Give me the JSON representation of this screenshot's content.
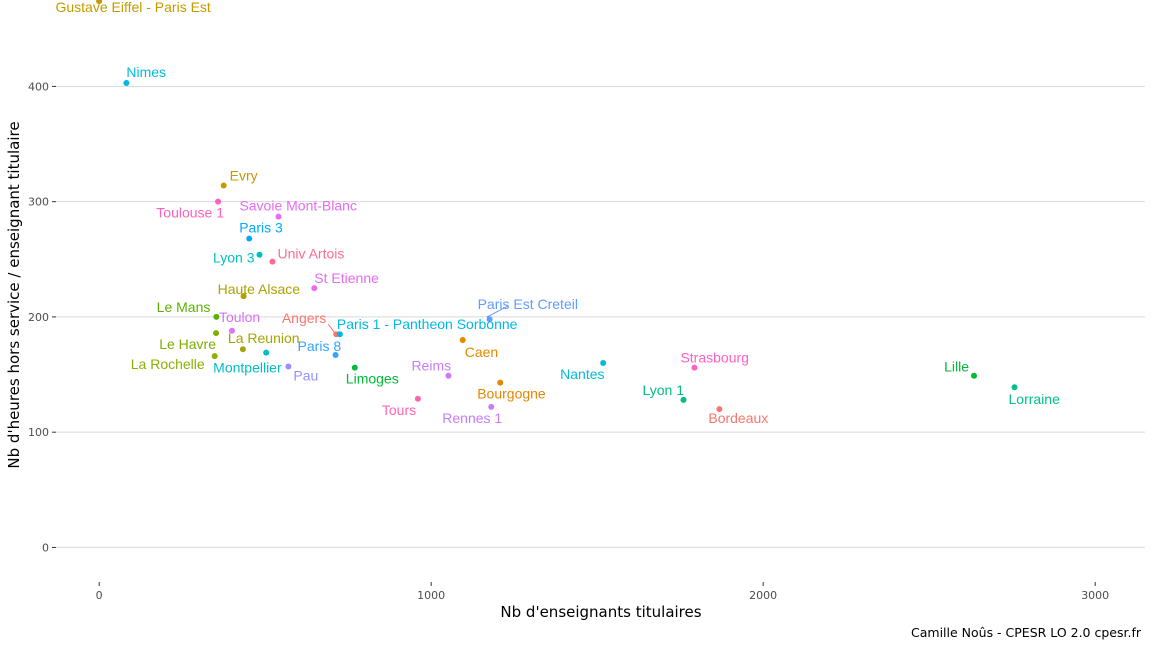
{
  "chart_data": {
    "type": "scatter",
    "xlabel": "Nb d'enseignants titulaires",
    "ylabel": "Nb d'heures hors service / enseignant titulaire",
    "xlim": [
      -130,
      3150
    ],
    "ylim": [
      -30,
      475
    ],
    "x_ticks": [
      0,
      1000,
      2000,
      3000
    ],
    "y_ticks": [
      0,
      100,
      200,
      300,
      400
    ],
    "grid": "horizontal major gridlines",
    "legend": "none",
    "points": [
      {
        "name": "Gustave Eiffel - Paris Est",
        "x": 0,
        "y": 474,
        "color": "#C49A00"
      },
      {
        "name": "Nimes",
        "x": 82,
        "y": 403,
        "color": "#00B9E3"
      },
      {
        "name": "Evry",
        "x": 375,
        "y": 314,
        "color": "#C49A00"
      },
      {
        "name": "Toulouse 1",
        "x": 358,
        "y": 300,
        "color": "#FF62BC"
      },
      {
        "name": "Savoie Mont-Blanc",
        "x": 540,
        "y": 287,
        "color": "#E76BF3"
      },
      {
        "name": "Paris 3",
        "x": 452,
        "y": 268,
        "color": "#00A9FF"
      },
      {
        "name": "Lyon 3",
        "x": 483,
        "y": 254,
        "color": "#00BFC4"
      },
      {
        "name": "Univ Artois",
        "x": 522,
        "y": 248,
        "color": "#FF6C91"
      },
      {
        "name": "St Etienne",
        "x": 648,
        "y": 225,
        "color": "#E76BF3"
      },
      {
        "name": "Haute Alsace",
        "x": 435,
        "y": 218,
        "color": "#AEA200"
      },
      {
        "name": "Paris Est Creteil",
        "x": 1176,
        "y": 198,
        "color": "#619CFF"
      },
      {
        "name": "Le Mans",
        "x": 353,
        "y": 200,
        "color": "#5BB300"
      },
      {
        "name": "Toulon",
        "x": 400,
        "y": 188,
        "color": "#DB72FB"
      },
      {
        "name": "Angers",
        "x": 714,
        "y": 185,
        "color": "#F8766D"
      },
      {
        "name": "Paris 1 - Pantheon Sorbonne",
        "x": 725,
        "y": 185,
        "color": "#00B8E7"
      },
      {
        "name": "Le Havre",
        "x": 352,
        "y": 186,
        "color": "#7CAE00"
      },
      {
        "name": "La Reunion",
        "x": 433,
        "y": 172,
        "color": "#A3A500"
      },
      {
        "name": "Caen",
        "x": 1095,
        "y": 180,
        "color": "#E38900"
      },
      {
        "name": "Paris 8",
        "x": 712,
        "y": 167,
        "color": "#35A2FF"
      },
      {
        "name": "Montpellier",
        "x": 503,
        "y": 169,
        "color": "#00BFC4"
      },
      {
        "name": "La Rochelle",
        "x": 348,
        "y": 166,
        "color": "#8AB100"
      },
      {
        "name": "Pau",
        "x": 570,
        "y": 157,
        "color": "#9590FF"
      },
      {
        "name": "Limoges",
        "x": 770,
        "y": 156,
        "color": "#00BA38"
      },
      {
        "name": "Nantes",
        "x": 1518,
        "y": 160,
        "color": "#00BCD8"
      },
      {
        "name": "Strasbourg",
        "x": 1793,
        "y": 156,
        "color": "#FF61C3"
      },
      {
        "name": "Reims",
        "x": 1052,
        "y": 149,
        "color": "#C77CFF"
      },
      {
        "name": "Lille",
        "x": 2635,
        "y": 149,
        "color": "#00BA38"
      },
      {
        "name": "Bourgogne",
        "x": 1208,
        "y": 143,
        "color": "#E58700"
      },
      {
        "name": "Lorraine",
        "x": 2757,
        "y": 139,
        "color": "#00C08B"
      },
      {
        "name": "Lyon 1",
        "x": 1760,
        "y": 128,
        "color": "#00BF7D"
      },
      {
        "name": "Tours",
        "x": 960,
        "y": 129,
        "color": "#FF65AE"
      },
      {
        "name": "Rennes 1",
        "x": 1181,
        "y": 122,
        "color": "#C77CFF"
      },
      {
        "name": "Bordeaux",
        "x": 1868,
        "y": 120,
        "color": "#F8766D"
      }
    ]
  },
  "caption": "Camille Noûs - CPESR LO 2.0 cpesr.fr"
}
